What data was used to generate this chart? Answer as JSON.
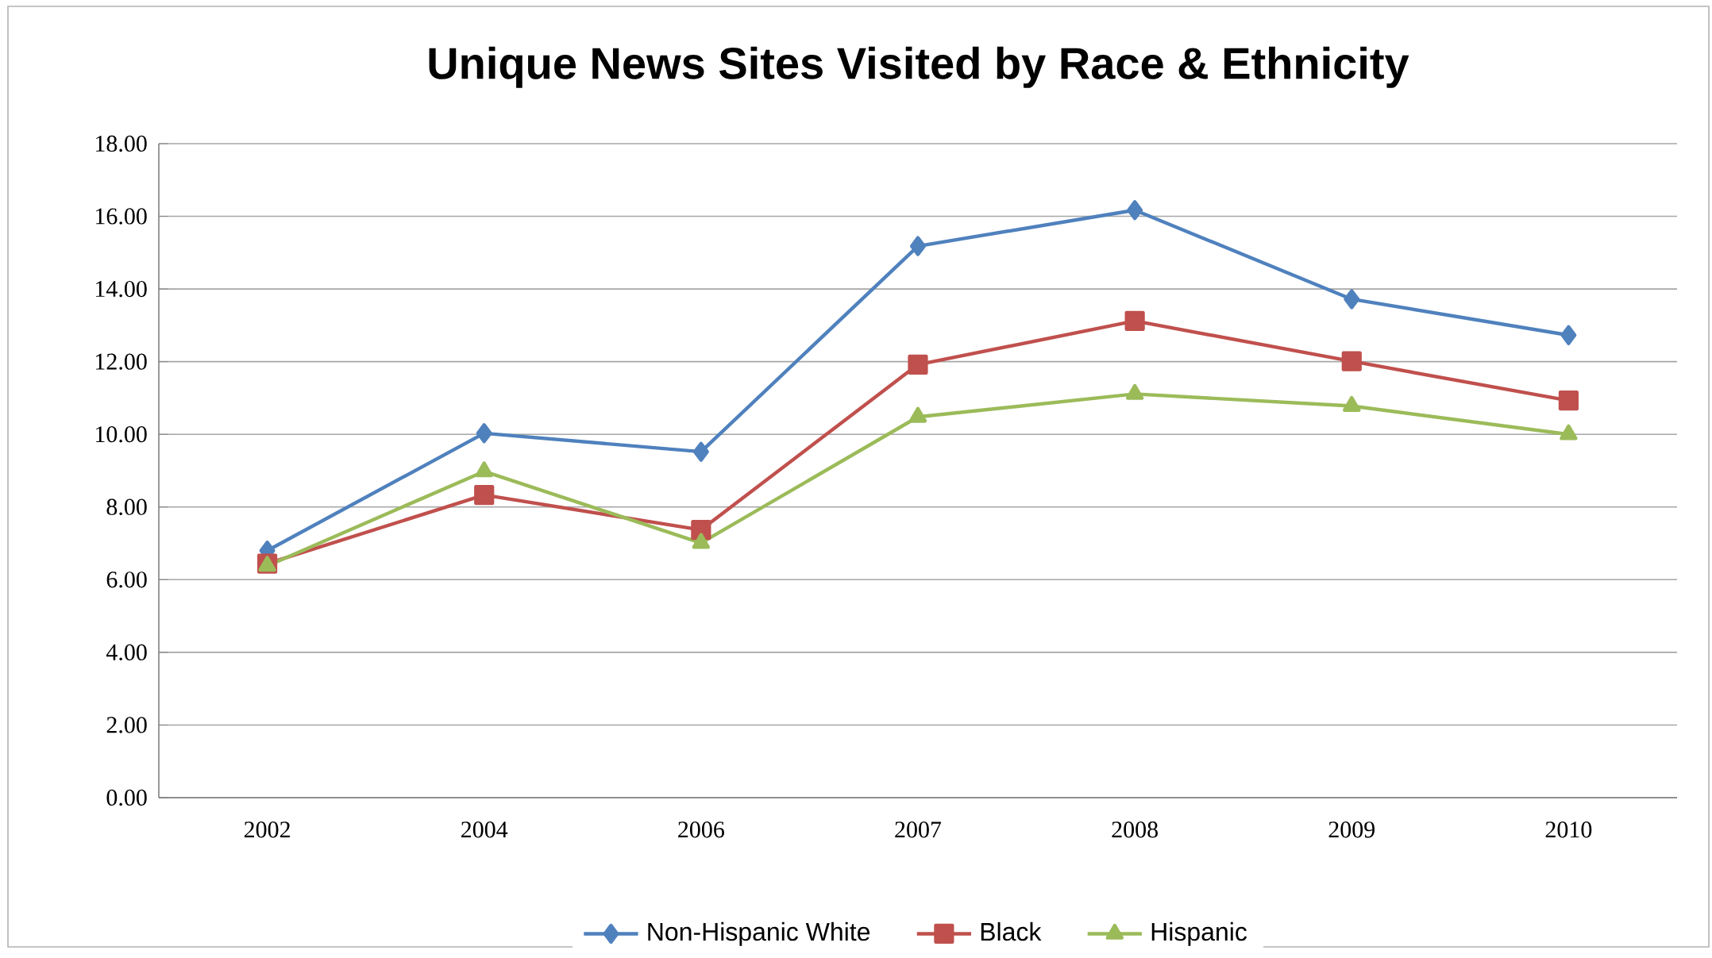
{
  "chart_data": {
    "type": "line",
    "title": "Unique News Sites Visited by Race & Ethnicity",
    "categories": [
      "2002",
      "2004",
      "2006",
      "2007",
      "2008",
      "2009",
      "2010"
    ],
    "series": [
      {
        "name": "Non-Hispanic White",
        "color": "#4f81bd",
        "marker": "diamond",
        "values": [
          6.8,
          10.03,
          9.52,
          15.18,
          16.17,
          13.72,
          12.73
        ]
      },
      {
        "name": "Black",
        "color": "#c0504d",
        "marker": "square",
        "values": [
          6.44,
          8.33,
          7.37,
          11.92,
          13.12,
          12.01,
          10.93
        ]
      },
      {
        "name": "Hispanic",
        "color": "#9bbb59",
        "marker": "triangle",
        "values": [
          6.38,
          8.98,
          7.01,
          10.48,
          11.11,
          10.78,
          10.0
        ]
      }
    ],
    "ylim": [
      0,
      18
    ],
    "yticks": [
      {
        "value": 0,
        "label": "0.00"
      },
      {
        "value": 2,
        "label": "2.00"
      },
      {
        "value": 4,
        "label": "4.00"
      },
      {
        "value": 6,
        "label": "6.00"
      },
      {
        "value": 8,
        "label": "8.00"
      },
      {
        "value": 10,
        "label": "10.00"
      },
      {
        "value": 12,
        "label": "12.00"
      },
      {
        "value": 14,
        "label": "14.00"
      },
      {
        "value": 16,
        "label": "16.00"
      },
      {
        "value": 18,
        "label": "18.00"
      }
    ],
    "grid": "y",
    "legend": "bottom",
    "line_style": "solid"
  }
}
